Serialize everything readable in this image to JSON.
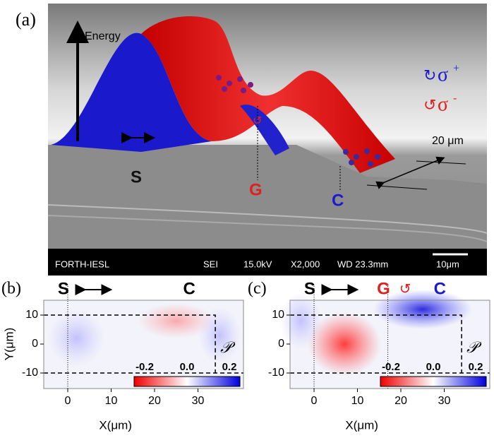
{
  "panel_a": {
    "label": "(a)",
    "energy_label": "Energy",
    "sigma_plus": {
      "symbol": "σ",
      "sign": "+"
    },
    "sigma_minus": {
      "symbol": "σ",
      "sign": "-"
    },
    "length_label": "20 μm",
    "sites": {
      "s": "S",
      "g": "G",
      "c": "C"
    },
    "sem_bar": [
      "FORTH-IESL",
      "SEI",
      "15.0kV",
      "X2,000",
      "WD 23.3mm",
      "10μm"
    ]
  },
  "panels": [
    {
      "label": "(b)",
      "left_site": "S",
      "right_site": "C",
      "middle_site": null
    },
    {
      "label": "(c)",
      "left_site": "S",
      "right_site": "C",
      "middle_site": "G"
    }
  ],
  "axes": {
    "xlabel": "X(μm)",
    "ylabel": "Y(μm)",
    "xticks": [
      0,
      10,
      20,
      30
    ],
    "yticks": [
      10,
      0,
      -10
    ],
    "colorbar_symbol": "𝒫",
    "colorbar_ticks": [
      {
        "value": -0.2,
        "label": "-0.2"
      },
      {
        "value": 0.0,
        "label": "0.0"
      },
      {
        "value": 0.2,
        "label": "0.2"
      }
    ]
  }
}
